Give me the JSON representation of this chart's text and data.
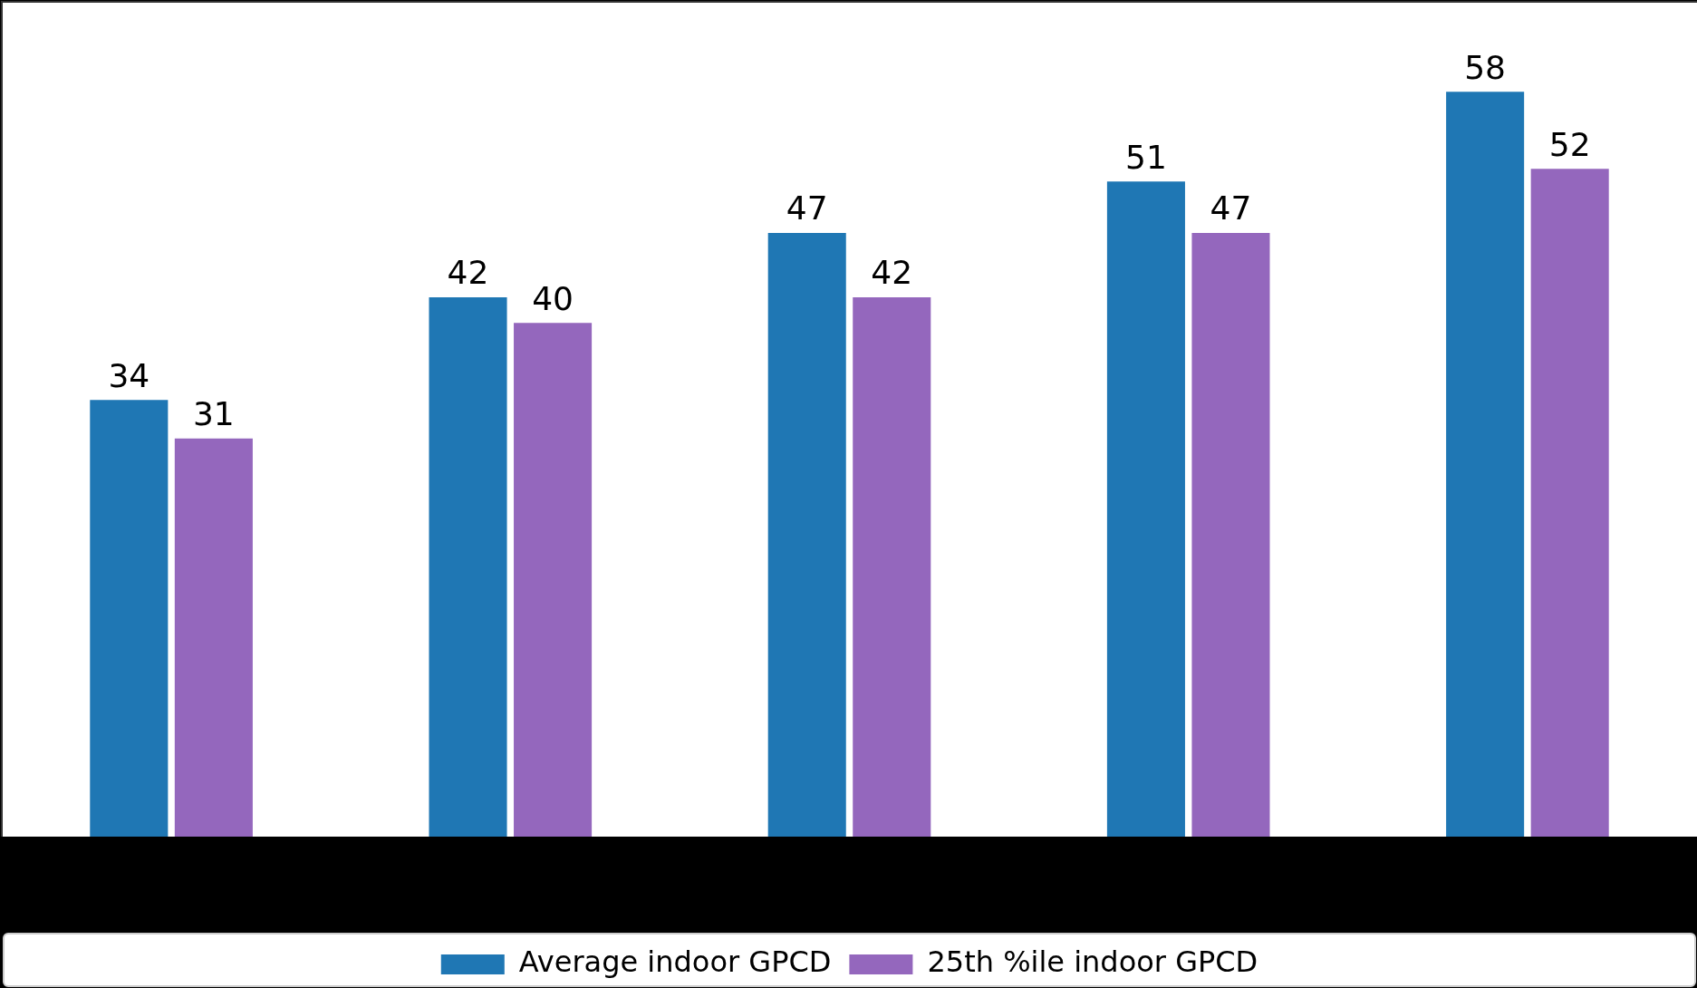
{
  "chart_data": {
    "type": "bar",
    "categories": [
      null,
      null,
      null,
      null,
      null
    ],
    "series": [
      {
        "name": "Average indoor GPCD",
        "color": "#1f77b4",
        "values": [
          34,
          42,
          47,
          51,
          58
        ]
      },
      {
        "name": "25th %ile indoor GPCD",
        "color": "#9467bd",
        "values": [
          31,
          40,
          42,
          47,
          52
        ]
      }
    ],
    "ylim": [
      0,
      65
    ],
    "data_labels": true,
    "legend": "bottom",
    "grid": false,
    "tick_labels": false
  }
}
